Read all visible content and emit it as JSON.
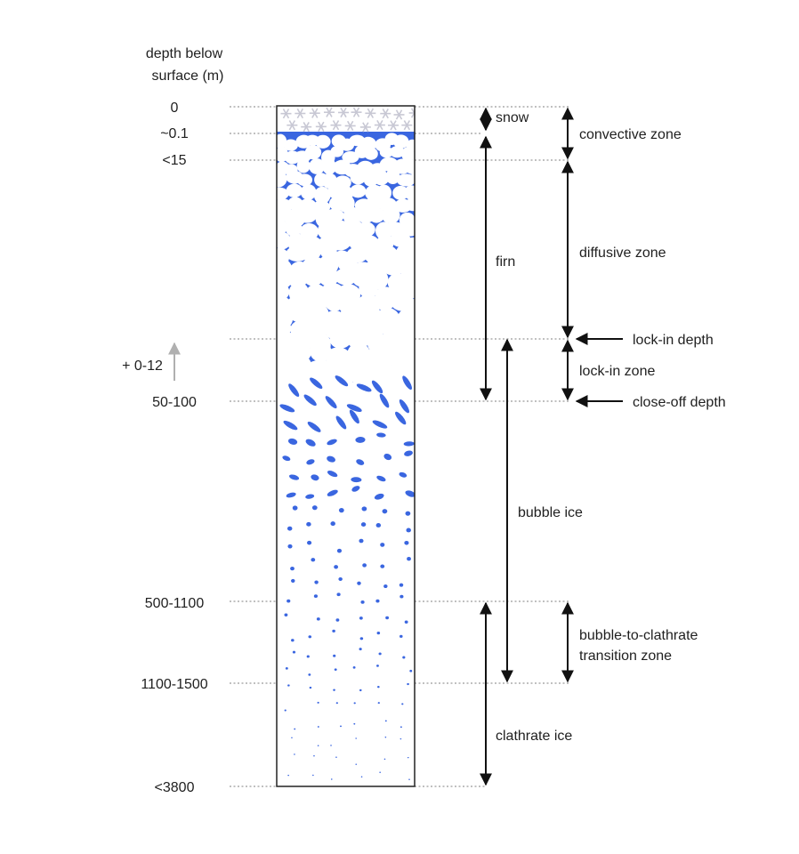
{
  "axis_title": [
    "depth below",
    "surface (m)"
  ],
  "depth_labels": [
    "0",
    "~0.1",
    "<15",
    "50-100",
    "500-1100",
    "1100-1500",
    "<3800"
  ],
  "shift_label": "+ 0-12",
  "layers": [
    "snow",
    "firn",
    "bubble ice",
    "clathrate ice"
  ],
  "zones": {
    "convective": "convective zone",
    "diffusive": "diffusive zone",
    "lockin_zone": "lock-in zone",
    "transition": [
      "bubble-to-clathrate",
      "transition zone"
    ]
  },
  "callouts": {
    "lockin_depth": "lock-in depth",
    "closeoff_depth": "close-off depth"
  },
  "colors": {
    "pore": "#3a66e0",
    "grain": "#ffffff",
    "border": "#222222",
    "guide": "#9a9a9a"
  }
}
